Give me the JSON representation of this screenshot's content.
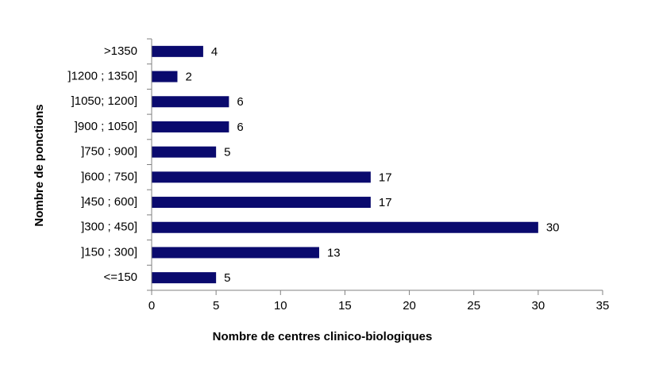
{
  "chart_data": {
    "type": "bar",
    "orientation": "horizontal",
    "categories": [
      "<=150",
      "]150 ; 300]",
      "]300 ; 450]",
      "]450 ; 600]",
      "]600 ; 750]",
      "]750 ; 900]",
      "]900 ; 1050]",
      "]1050; 1200]",
      "]1200 ; 1350]",
      ">1350"
    ],
    "values": [
      5,
      13,
      30,
      17,
      17,
      5,
      6,
      6,
      2,
      4
    ],
    "title": "",
    "xlabel": "Nombre de centres clinico-biologiques",
    "ylabel": "Nombre de ponctions",
    "xlim": [
      0,
      35
    ],
    "xticks": [
      0,
      5,
      10,
      15,
      20,
      25,
      30,
      35
    ],
    "grid": false,
    "legend": "none",
    "bar_color": "#0A0A6E",
    "axis_color": "#808080"
  }
}
